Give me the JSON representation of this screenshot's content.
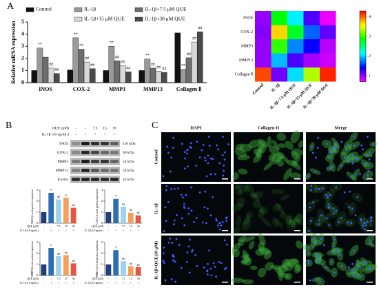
{
  "panels": [
    "A",
    "B",
    "C"
  ],
  "chart_data": [
    {
      "type": "bar",
      "ylabel": "Relative mRNA expression",
      "categories": [
        "INOS",
        "COX-2",
        "MMP3",
        "MMP13",
        "Collagen Ⅱ"
      ],
      "ylim": [
        0,
        5
      ],
      "yticks": [
        0,
        1,
        2,
        3,
        4,
        5
      ],
      "series": [
        {
          "name": "Control",
          "color": "#111111",
          "values": [
            1.0,
            1.05,
            1.0,
            1.0,
            4.1
          ],
          "labels": [
            null,
            null,
            null,
            null,
            null
          ]
        },
        {
          "name": "IL-1β",
          "color": "#9a9a9a",
          "values": [
            2.85,
            3.7,
            3.0,
            1.95,
            1.1
          ],
          "labels": [
            "**",
            "**",
            "**",
            "**",
            "**"
          ]
        },
        {
          "name": "IL-1β+7.5 μM QUE",
          "color": "#6e6e6e",
          "values": [
            2.1,
            2.75,
            1.8,
            1.2,
            2.05
          ],
          "labels": [
            null,
            "**",
            "##",
            "##",
            "##"
          ]
        },
        {
          "name": "IL-1β+15 μM QUE",
          "color": "#d8d8d8",
          "values": [
            1.2,
            1.7,
            1.4,
            0.95,
            3.35
          ],
          "labels": [
            "##",
            "##",
            "##",
            "##",
            "##"
          ]
        },
        {
          "name": "IL-1β+30 μM QUE",
          "color": "#4a4a4a",
          "values": [
            0.75,
            1.15,
            0.9,
            0.85,
            4.2
          ],
          "labels": [
            "##",
            "##",
            "##",
            "##",
            "##"
          ]
        }
      ]
    },
    {
      "type": "heatmap",
      "rows": [
        "INOS",
        "COX-2",
        "MMP3",
        "MMP13",
        "Collagen Ⅱ"
      ],
      "columns": [
        "Control",
        "IL-1β",
        "IL-1β+7.5 μM QUE",
        "IL-1β+15 μM QUE",
        "IL-1β+30 μM QUE"
      ],
      "values": [
        [
          1.0,
          2.85,
          2.1,
          1.2,
          0.75
        ],
        [
          1.05,
          3.7,
          2.75,
          1.7,
          1.15
        ],
        [
          1.0,
          3.0,
          1.8,
          1.4,
          0.9
        ],
        [
          1.0,
          1.95,
          1.2,
          0.95,
          0.85
        ],
        [
          4.1,
          1.1,
          2.05,
          3.35,
          4.2
        ]
      ],
      "clim": [
        0.7,
        4.3
      ],
      "cticks": [
        1,
        2,
        3,
        4
      ]
    },
    {
      "type": "bar",
      "ylabel": "INOS/β-actin protein expression",
      "ylim": [
        0,
        3
      ],
      "yticks": [
        0,
        1,
        2,
        3
      ],
      "values": [
        1.0,
        2.75,
        2.15,
        2.3,
        1.4
      ],
      "colors": [
        "#1f3f7a",
        "#2e6db4",
        "#9fd3ea",
        "#f5a05a",
        "#e8553f"
      ],
      "labels": [
        null,
        "**",
        "##",
        "#",
        "##"
      ],
      "x_rows": [
        {
          "name": "QUE (μM)",
          "labels": [
            "-",
            "-",
            "7.5",
            "15",
            "30"
          ]
        },
        {
          "name": "IL-1β (10 ng/mL)",
          "labels": [
            "-",
            "+",
            "+",
            "+",
            "+"
          ]
        }
      ]
    },
    {
      "type": "bar",
      "ylabel": "COX-2/β-actin protein expression",
      "ylim": [
        0,
        3
      ],
      "yticks": [
        0,
        1,
        2,
        3
      ],
      "values": [
        1.0,
        2.2,
        1.5,
        0.95,
        0.7
      ],
      "colors": [
        "#1f3f7a",
        "#2e6db4",
        "#9fd3ea",
        "#f5a05a",
        "#e8553f"
      ],
      "labels": [
        null,
        "**",
        "##",
        "##",
        "##"
      ],
      "x_rows": [
        {
          "name": "QUE (μM)",
          "labels": [
            "-",
            "-",
            "7.5",
            "15",
            "30"
          ]
        },
        {
          "name": "IL-1β (10 ng/mL)",
          "labels": [
            "-",
            "+",
            "+",
            "+",
            "+"
          ]
        }
      ]
    },
    {
      "type": "bar",
      "ylabel": "MMP3/β-actin protein expression",
      "ylim": [
        0,
        3
      ],
      "yticks": [
        0,
        1,
        2,
        3
      ],
      "values": [
        1.0,
        2.5,
        1.75,
        1.85,
        1.1
      ],
      "colors": [
        "#1f3f7a",
        "#2e6db4",
        "#9fd3ea",
        "#f5a05a",
        "#e8553f"
      ],
      "labels": [
        null,
        "**",
        "##",
        "##",
        "##"
      ],
      "x_rows": [
        {
          "name": "QUE (μM)",
          "labels": [
            "-",
            "-",
            "7.5",
            "15",
            "30"
          ]
        },
        {
          "name": "IL-1β (10 ng/mL)",
          "labels": [
            "-",
            "+",
            "+",
            "+",
            "+"
          ]
        }
      ]
    },
    {
      "type": "bar",
      "ylabel": "MMP13/β-actin protein expression",
      "ylim": [
        0,
        3
      ],
      "yticks": [
        0,
        1,
        2,
        3
      ],
      "values": [
        1.0,
        2.3,
        1.3,
        0.85,
        0.75
      ],
      "colors": [
        "#1f3f7a",
        "#2e6db4",
        "#9fd3ea",
        "#f5a05a",
        "#e8553f"
      ],
      "labels": [
        null,
        "**",
        "##",
        "##",
        "##"
      ],
      "x_rows": [
        {
          "name": "QUE (μM)",
          "labels": [
            "-",
            "-",
            "7.5",
            "15",
            "30"
          ]
        },
        {
          "name": "IL-1β (10 ng/mL)",
          "labels": [
            "-",
            "+",
            "+",
            "+",
            "+"
          ]
        }
      ]
    }
  ],
  "blot": {
    "header_rows": [
      {
        "name": "QUE (μM)",
        "labels": [
          "-",
          "-",
          "7.5",
          "15",
          "30"
        ]
      },
      {
        "name": "IL-1β (10 ng/mL)",
        "labels": [
          "-",
          "+",
          "+",
          "+",
          "+"
        ]
      }
    ],
    "rows": [
      {
        "name": "INOS",
        "size": "110 kDa"
      },
      {
        "name": "COX-2",
        "size": "69 kDa"
      },
      {
        "name": "MMP3",
        "size": "54 kDa"
      },
      {
        "name": "MMP13",
        "size": "54 kDa"
      },
      {
        "name": "β-actin",
        "size": "45 kDa"
      }
    ]
  },
  "microscopy": {
    "columns": [
      "DAPI",
      "Collagen II",
      "Merge"
    ],
    "rows": [
      "Control",
      "IL-1β",
      "IL-1β+QUE(30 μM)"
    ]
  }
}
